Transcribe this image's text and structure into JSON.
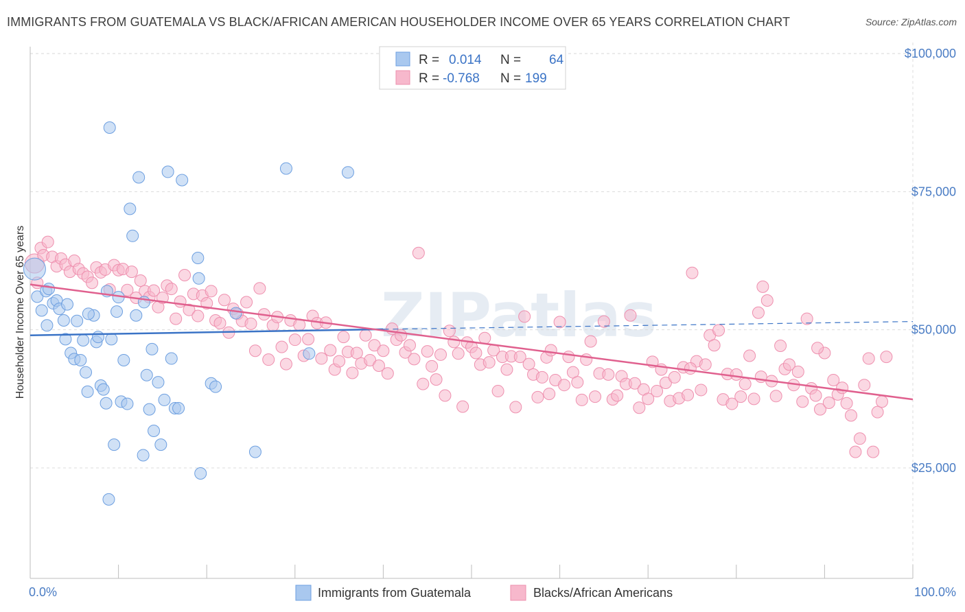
{
  "title": "IMMIGRANTS FROM GUATEMALA VS BLACK/AFRICAN AMERICAN HOUSEHOLDER INCOME OVER 65 YEARS CORRELATION CHART",
  "source": "Source: ZipAtlas.com",
  "watermark": "ZIPatlas",
  "colors": {
    "blue_fill": "#a9c8ef",
    "blue_stroke": "#6d9fe0",
    "blue_line": "#3a73c6",
    "pink_fill": "#f7b8cc",
    "pink_stroke": "#ee8fae",
    "pink_line": "#e0608e",
    "grid": "#dcdcdc",
    "tick_label": "#4a7cc4"
  },
  "legend": {
    "rows": [
      {
        "r_label": "R =",
        "r_value": "0.014",
        "n_label": "N =",
        "n_value": "64",
        "color": "blue"
      },
      {
        "r_label": "R =",
        "r_value": "-0.768",
        "n_label": "N =",
        "n_value": "199",
        "color": "pink"
      }
    ]
  },
  "chart_data": {
    "type": "scatter",
    "ylabel": "Householder Income Over 65 years",
    "xlim": [
      0,
      100
    ],
    "ylim": [
      5000,
      102000
    ],
    "x_tick_labels": [
      "0.0%",
      "100.0%"
    ],
    "y_ticks": [
      25000,
      50000,
      75000,
      100000
    ],
    "y_tick_labels": [
      "$25,000",
      "$50,000",
      "$75,000",
      "$100,000"
    ],
    "grid": true,
    "legend_position": "bottom",
    "series": [
      {
        "name": "Immigrants from Guatemala",
        "color": "blue",
        "trend": {
          "x0": 0,
          "y0": 49000,
          "x1": 40,
          "y1": 50100,
          "dash_to_x": 100,
          "dash_to_y": 51500
        },
        "points": [
          [
            0.5,
            61000
          ],
          [
            0.8,
            56000
          ],
          [
            1.3,
            53500
          ],
          [
            1.8,
            57000
          ],
          [
            1.9,
            50800
          ],
          [
            2.6,
            54800
          ],
          [
            3.0,
            55300
          ],
          [
            3.3,
            53800
          ],
          [
            3.8,
            51700
          ],
          [
            4.2,
            54600
          ],
          [
            4.0,
            48300
          ],
          [
            4.6,
            45800
          ],
          [
            5.0,
            44700
          ],
          [
            5.7,
            44500
          ],
          [
            6.0,
            48100
          ],
          [
            6.3,
            42300
          ],
          [
            6.5,
            38800
          ],
          [
            7.2,
            52600
          ],
          [
            7.5,
            47800
          ],
          [
            7.7,
            48700
          ],
          [
            8.0,
            39900
          ],
          [
            8.3,
            39200
          ],
          [
            8.6,
            36700
          ],
          [
            8.7,
            57000
          ],
          [
            8.9,
            19300
          ],
          [
            9.2,
            48300
          ],
          [
            9.0,
            86600
          ],
          [
            9.5,
            29200
          ],
          [
            9.8,
            53300
          ],
          [
            10.0,
            55900
          ],
          [
            10.3,
            37000
          ],
          [
            10.6,
            44500
          ],
          [
            11.0,
            36600
          ],
          [
            11.3,
            71900
          ],
          [
            11.6,
            67000
          ],
          [
            12.0,
            52600
          ],
          [
            12.3,
            77600
          ],
          [
            12.8,
            27300
          ],
          [
            13.2,
            41800
          ],
          [
            13.5,
            35600
          ],
          [
            13.8,
            46500
          ],
          [
            14.0,
            31700
          ],
          [
            14.5,
            40500
          ],
          [
            14.8,
            29200
          ],
          [
            15.2,
            37300
          ],
          [
            15.6,
            78600
          ],
          [
            16.0,
            44800
          ],
          [
            16.4,
            35800
          ],
          [
            16.8,
            35800
          ],
          [
            17.2,
            77100
          ],
          [
            19.0,
            63000
          ],
          [
            19.1,
            59300
          ],
          [
            19.3,
            24000
          ],
          [
            20.5,
            40300
          ],
          [
            21.0,
            39700
          ],
          [
            23.3,
            53000
          ],
          [
            25.5,
            27900
          ],
          [
            29.0,
            79200
          ],
          [
            31.6,
            45700
          ],
          [
            36.0,
            78500
          ],
          [
            2.1,
            57400
          ],
          [
            6.6,
            52900
          ],
          [
            12.9,
            55000
          ],
          [
            5.3,
            51600
          ]
        ]
      },
      {
        "name": "Blacks/African Americans",
        "color": "pink",
        "trend": {
          "x0": 0,
          "y0": 58200,
          "x1": 100,
          "y1": 37400
        },
        "points": [
          [
            0.5,
            62000
          ],
          [
            0.8,
            58500
          ],
          [
            1.2,
            64800
          ],
          [
            1.5,
            63500
          ],
          [
            2.0,
            65900
          ],
          [
            2.5,
            63200
          ],
          [
            3.0,
            61500
          ],
          [
            3.5,
            62900
          ],
          [
            4.0,
            61800
          ],
          [
            4.5,
            60500
          ],
          [
            5.0,
            62500
          ],
          [
            5.5,
            61000
          ],
          [
            6.0,
            60200
          ],
          [
            6.5,
            59600
          ],
          [
            7.0,
            58500
          ],
          [
            7.5,
            61300
          ],
          [
            8.0,
            60400
          ],
          [
            8.5,
            60900
          ],
          [
            9.0,
            57300
          ],
          [
            9.5,
            61700
          ],
          [
            10.0,
            60800
          ],
          [
            10.5,
            61000
          ],
          [
            11.0,
            57200
          ],
          [
            11.5,
            60500
          ],
          [
            12.0,
            55800
          ],
          [
            12.5,
            58900
          ],
          [
            13.0,
            57000
          ],
          [
            13.5,
            55900
          ],
          [
            14.0,
            57100
          ],
          [
            14.5,
            54100
          ],
          [
            15.0,
            55800
          ],
          [
            15.5,
            58000
          ],
          [
            16.0,
            57400
          ],
          [
            16.5,
            52000
          ],
          [
            17.0,
            55100
          ],
          [
            17.5,
            59900
          ],
          [
            18.0,
            53600
          ],
          [
            18.5,
            56500
          ],
          [
            19.0,
            52500
          ],
          [
            19.5,
            56200
          ],
          [
            20.0,
            54800
          ],
          [
            20.5,
            57000
          ],
          [
            21.0,
            51700
          ],
          [
            21.5,
            51200
          ],
          [
            22.0,
            55400
          ],
          [
            22.5,
            49500
          ],
          [
            23.0,
            53800
          ],
          [
            23.5,
            52900
          ],
          [
            24.0,
            51600
          ],
          [
            24.5,
            55000
          ],
          [
            25.0,
            51100
          ],
          [
            25.5,
            46200
          ],
          [
            26.0,
            57500
          ],
          [
            26.5,
            52800
          ],
          [
            27.0,
            44600
          ],
          [
            27.5,
            50800
          ],
          [
            28.0,
            52300
          ],
          [
            28.5,
            46900
          ],
          [
            29.0,
            43800
          ],
          [
            29.5,
            51700
          ],
          [
            30.0,
            48200
          ],
          [
            30.5,
            50900
          ],
          [
            31.0,
            45300
          ],
          [
            31.5,
            48300
          ],
          [
            32.0,
            52500
          ],
          [
            32.5,
            51200
          ],
          [
            33.0,
            44800
          ],
          [
            33.5,
            51300
          ],
          [
            34.0,
            46300
          ],
          [
            34.5,
            42800
          ],
          [
            35.0,
            44300
          ],
          [
            35.5,
            48700
          ],
          [
            36.0,
            46000
          ],
          [
            36.5,
            42200
          ],
          [
            37.0,
            45800
          ],
          [
            37.5,
            43900
          ],
          [
            38.0,
            49000
          ],
          [
            38.5,
            44500
          ],
          [
            39.0,
            47200
          ],
          [
            39.5,
            43500
          ],
          [
            40.0,
            46200
          ],
          [
            40.5,
            42100
          ],
          [
            41.0,
            50200
          ],
          [
            41.5,
            48200
          ],
          [
            42.0,
            49000
          ],
          [
            42.5,
            45900
          ],
          [
            43.0,
            47200
          ],
          [
            43.5,
            44700
          ],
          [
            44.0,
            63900
          ],
          [
            44.5,
            40200
          ],
          [
            45.0,
            46100
          ],
          [
            45.5,
            43400
          ],
          [
            46.0,
            41000
          ],
          [
            46.5,
            45500
          ],
          [
            47.0,
            38100
          ],
          [
            47.5,
            49800
          ],
          [
            48.0,
            47800
          ],
          [
            48.5,
            45700
          ],
          [
            49.0,
            36100
          ],
          [
            49.5,
            47700
          ],
          [
            50.0,
            46900
          ],
          [
            50.5,
            45800
          ],
          [
            51.0,
            43700
          ],
          [
            51.5,
            48500
          ],
          [
            52.0,
            44100
          ],
          [
            52.5,
            46300
          ],
          [
            53.0,
            38900
          ],
          [
            53.5,
            45100
          ],
          [
            54.0,
            42800
          ],
          [
            54.5,
            45200
          ],
          [
            55.0,
            36000
          ],
          [
            55.5,
            45100
          ],
          [
            56.0,
            52400
          ],
          [
            56.5,
            43800
          ],
          [
            57.0,
            41900
          ],
          [
            57.5,
            37800
          ],
          [
            58.0,
            41400
          ],
          [
            58.5,
            45000
          ],
          [
            59.0,
            46300
          ],
          [
            59.5,
            40900
          ],
          [
            60.0,
            51400
          ],
          [
            60.5,
            40000
          ],
          [
            61.0,
            45100
          ],
          [
            61.5,
            42300
          ],
          [
            62.0,
            40500
          ],
          [
            62.5,
            37300
          ],
          [
            63.0,
            44600
          ],
          [
            63.5,
            47900
          ],
          [
            64.0,
            37900
          ],
          [
            64.5,
            42100
          ],
          [
            65.0,
            51500
          ],
          [
            65.5,
            41900
          ],
          [
            66.0,
            37400
          ],
          [
            66.5,
            38100
          ],
          [
            67.0,
            41600
          ],
          [
            67.5,
            40200
          ],
          [
            68.0,
            52600
          ],
          [
            68.5,
            40300
          ],
          [
            69.0,
            35900
          ],
          [
            69.5,
            39200
          ],
          [
            70.0,
            37500
          ],
          [
            70.5,
            44200
          ],
          [
            71.0,
            38900
          ],
          [
            71.5,
            42800
          ],
          [
            72.0,
            40400
          ],
          [
            72.5,
            37100
          ],
          [
            73.0,
            41400
          ],
          [
            73.5,
            37600
          ],
          [
            74.0,
            43200
          ],
          [
            74.5,
            38200
          ],
          [
            75.0,
            60300
          ],
          [
            75.5,
            44300
          ],
          [
            76.0,
            39100
          ],
          [
            76.5,
            43700
          ],
          [
            77.0,
            49000
          ],
          [
            77.5,
            47200
          ],
          [
            78.0,
            49900
          ],
          [
            78.5,
            37400
          ],
          [
            79.0,
            42000
          ],
          [
            79.5,
            36600
          ],
          [
            80.0,
            41900
          ],
          [
            80.5,
            37900
          ],
          [
            81.0,
            40200
          ],
          [
            81.5,
            45300
          ],
          [
            82.0,
            37500
          ],
          [
            82.5,
            53100
          ],
          [
            83.0,
            57800
          ],
          [
            83.5,
            55300
          ],
          [
            84.0,
            40700
          ],
          [
            84.5,
            38000
          ],
          [
            85.0,
            47100
          ],
          [
            85.5,
            42900
          ],
          [
            86.0,
            43700
          ],
          [
            86.5,
            40000
          ],
          [
            87.0,
            42400
          ],
          [
            87.5,
            37000
          ],
          [
            88.0,
            52000
          ],
          [
            88.5,
            39400
          ],
          [
            89.0,
            38100
          ],
          [
            89.5,
            35600
          ],
          [
            90.0,
            45800
          ],
          [
            90.5,
            36800
          ],
          [
            91.0,
            40900
          ],
          [
            91.5,
            38300
          ],
          [
            92.0,
            39500
          ],
          [
            92.5,
            36700
          ],
          [
            93.0,
            34500
          ],
          [
            93.5,
            27900
          ],
          [
            94.0,
            30300
          ],
          [
            94.5,
            40000
          ],
          [
            95.0,
            44800
          ],
          [
            95.5,
            27900
          ],
          [
            96.0,
            35100
          ],
          [
            96.5,
            37000
          ],
          [
            97.0,
            45100
          ],
          [
            89.2,
            46700
          ],
          [
            74.8,
            43000
          ],
          [
            58.8,
            38400
          ],
          [
            82.8,
            41500
          ]
        ]
      }
    ]
  }
}
